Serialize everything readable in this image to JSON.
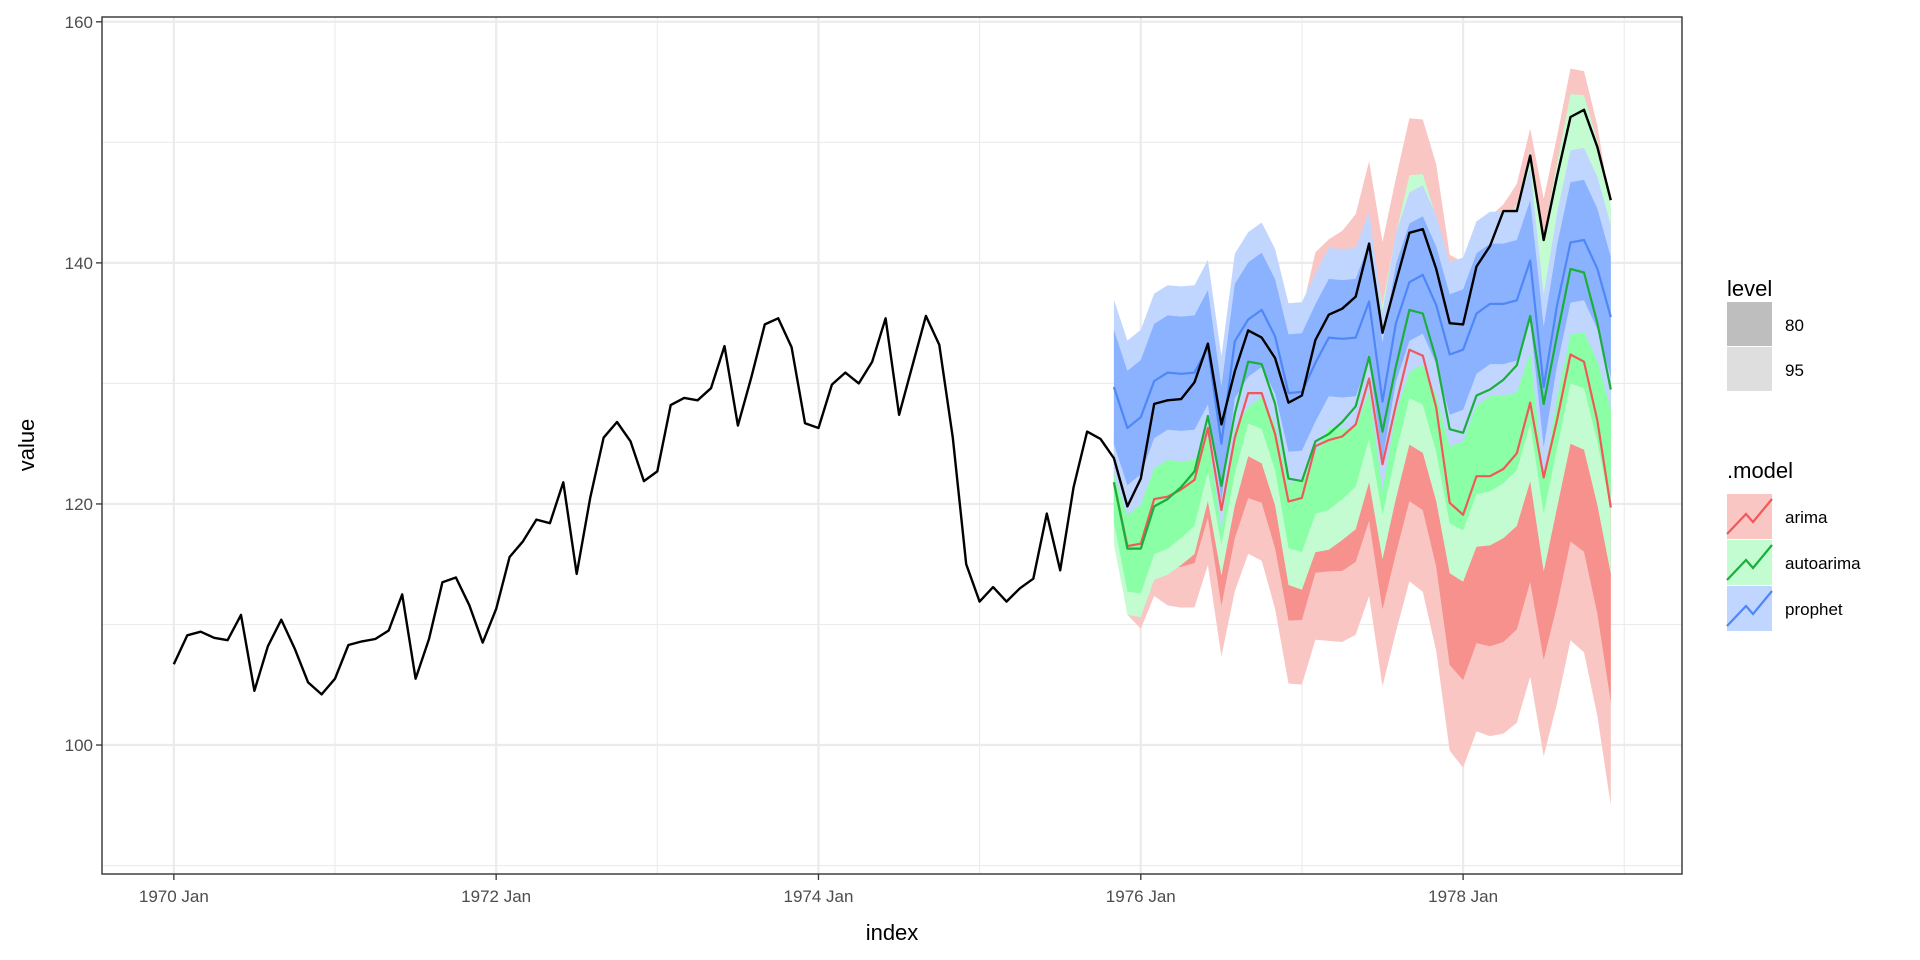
{
  "chart_data": {
    "type": "line",
    "title": "",
    "xlabel": "index",
    "ylabel": "value",
    "ylim": [
      89.3,
      160.4
    ],
    "xlim_months_since_1970_jan": [
      -5.35,
      112.3
    ],
    "x_ticks": [
      "1970 Jan",
      "1972 Jan",
      "1974 Jan",
      "1976 Jan",
      "1978 Jan"
    ],
    "y_ticks": [
      100,
      120,
      140,
      160
    ],
    "grid": true,
    "history": {
      "start": "1970 Jan",
      "frequency": "monthly",
      "color": "#000000",
      "values": [
        106.7,
        109.1,
        109.4,
        108.9,
        108.7,
        110.8,
        104.5,
        108.2,
        110.4,
        108.0,
        105.2,
        104.2,
        105.5,
        108.3,
        108.6,
        108.8,
        109.5,
        112.5,
        105.5,
        108.8,
        113.5,
        113.9,
        111.6,
        108.5,
        111.3,
        115.6,
        116.9,
        118.7,
        118.4,
        121.8,
        114.2,
        120.5,
        125.5,
        126.8,
        125.2,
        121.9,
        122.7,
        128.2,
        128.8,
        128.6,
        129.6,
        133.1,
        126.5,
        130.5,
        134.9,
        135.4,
        133.0,
        126.7,
        126.3,
        129.9,
        130.9,
        130.0,
        131.8,
        135.4,
        127.4,
        131.5,
        135.6,
        133.2,
        125.5,
        115.0,
        111.9,
        113.1,
        111.9,
        113.0,
        113.8,
        119.2,
        114.5,
        121.4,
        126.0,
        125.4,
        123.8,
        119.8,
        122.1,
        128.3,
        128.6,
        128.7,
        130.1,
        133.3,
        126.6,
        131.0,
        134.4,
        133.8,
        132.1,
        128.4,
        129.0,
        133.6,
        135.7,
        136.2,
        137.2,
        141.6,
        134.2,
        138.4,
        142.5,
        142.8,
        139.5,
        135.0,
        134.9,
        139.7,
        141.4,
        144.3,
        144.3,
        148.9,
        141.9,
        147.2,
        152.1,
        152.7,
        149.6,
        145.2
      ]
    },
    "forecast_start": "1975 Nov",
    "levels": [
      {
        "label": "80",
        "z": 1.2816,
        "key_color": "#BEBEBE"
      },
      {
        "label": "95",
        "z": 1.96,
        "key_color": "#DEDEDE"
      }
    ],
    "models": [
      {
        "name": "arima",
        "line_color": "#F0595A",
        "fill_95": "#F9C6C4",
        "fill_80": "#F6918D",
        "key_fill": "#F9C6C4",
        "mean": [
          121.8,
          116.5,
          116.7,
          120.4,
          120.6,
          121.2,
          122.0,
          126.3,
          119.5,
          125.5,
          129.2,
          129.2,
          125.8,
          120.2,
          120.5,
          124.8,
          125.3,
          125.6,
          126.6,
          130.4,
          123.3,
          128.2,
          132.8,
          132.3,
          128.0,
          120.1,
          119.1,
          122.3,
          122.3,
          122.9,
          124.2,
          128.4,
          122.2,
          127.0,
          132.4,
          131.8,
          126.9,
          119.7
        ],
        "se": [
          2.1,
          2.9,
          3.6,
          4.1,
          4.6,
          5.0,
          5.4,
          5.8,
          6.2,
          6.5,
          6.8,
          7.1,
          7.4,
          7.7,
          7.9,
          8.2,
          8.5,
          8.7,
          8.9,
          9.2,
          9.4,
          9.6,
          9.8,
          10.0,
          10.3,
          10.5,
          10.7,
          10.8,
          11.0,
          11.2,
          11.4,
          11.6,
          11.8,
          12.0,
          12.1,
          12.3,
          12.5,
          12.6
        ]
      },
      {
        "name": "autoarima",
        "line_color": "#1AAE3A",
        "fill_95": "#C4FCD2",
        "fill_80": "#8AFFA6",
        "key_fill": "#C4FCD2",
        "mean": [
          121.8,
          116.3,
          116.3,
          119.8,
          120.4,
          121.4,
          122.7,
          127.3,
          121.5,
          127.5,
          131.8,
          131.6,
          128.3,
          122.1,
          121.9,
          125.2,
          125.8,
          126.8,
          128.1,
          132.2,
          126.0,
          131.4,
          136.1,
          135.8,
          132.0,
          126.2,
          125.9,
          129.0,
          129.5,
          130.3,
          131.5,
          135.6,
          128.3,
          134.0,
          139.5,
          139.2,
          135.0,
          129.5
        ],
        "se": [
          2.6,
          2.8,
          2.9,
          3.1,
          3.2,
          3.3,
          3.5,
          3.6,
          3.8,
          3.9,
          4.0,
          4.2,
          4.3,
          4.5,
          4.6,
          4.7,
          4.9,
          5.0,
          5.2,
          5.3,
          5.4,
          5.6,
          5.7,
          5.9,
          6.0,
          6.1,
          6.3,
          6.4,
          6.6,
          6.7,
          6.8,
          7.0,
          7.1,
          7.3,
          7.4,
          7.5,
          7.7,
          7.8
        ]
      },
      {
        "name": "prophet",
        "line_color": "#4F87F7",
        "fill_95": "#C1D6FF",
        "fill_80": "#8BB2FF",
        "key_fill": "#C1D6FF",
        "mean": [
          129.7,
          126.3,
          127.2,
          130.2,
          130.9,
          130.8,
          130.9,
          133.0,
          125.0,
          133.5,
          135.3,
          136.1,
          133.9,
          129.2,
          129.3,
          131.7,
          133.8,
          133.7,
          133.8,
          136.8,
          128.5,
          135.0,
          138.4,
          139.0,
          136.5,
          132.4,
          132.8,
          135.8,
          136.6,
          136.6,
          136.9,
          140.2,
          129.7,
          136.5,
          141.7,
          141.9,
          139.5,
          135.5
        ],
        "se": [
          3.7,
          3.7,
          3.7,
          3.7,
          3.7,
          3.7,
          3.7,
          3.7,
          3.7,
          3.7,
          3.7,
          3.7,
          3.7,
          3.8,
          3.8,
          3.8,
          3.8,
          3.8,
          3.8,
          3.8,
          3.8,
          3.8,
          3.8,
          3.8,
          3.8,
          3.9,
          3.9,
          3.9,
          3.9,
          3.9,
          3.9,
          3.9,
          3.9,
          3.9,
          3.9,
          3.9,
          3.9,
          3.9
        ]
      }
    ],
    "legend": {
      "placement": "right",
      "level_title": "level",
      "model_title": ".model"
    }
  }
}
